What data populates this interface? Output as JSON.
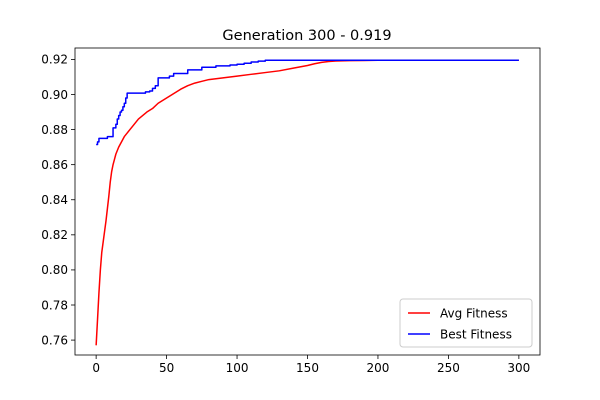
{
  "chart_data": {
    "type": "line",
    "title": "Generation 300 - 0.919",
    "xlabel": "",
    "ylabel": "",
    "xlim": [
      -15,
      315
    ],
    "ylim": [
      0.7515,
      0.9265
    ],
    "xticks": [
      0,
      50,
      100,
      150,
      200,
      250,
      300
    ],
    "yticks": [
      0.76,
      0.78,
      0.8,
      0.82,
      0.84,
      0.86,
      0.88,
      0.9,
      0.92
    ],
    "ytick_labels": [
      "0.76",
      "0.78",
      "0.80",
      "0.82",
      "0.84",
      "0.86",
      "0.88",
      "0.90",
      "0.92"
    ],
    "grid": false,
    "legend_position": "lower-right",
    "series": [
      {
        "name": "Avg Fitness",
        "color": "#ff0000",
        "step": false,
        "x": [
          0,
          1,
          2,
          3,
          4,
          5,
          6,
          7,
          8,
          9,
          10,
          11,
          12,
          13,
          14,
          15,
          16,
          18,
          20,
          22,
          25,
          28,
          30,
          33,
          36,
          40,
          44,
          48,
          52,
          56,
          60,
          65,
          70,
          75,
          80,
          85,
          90,
          100,
          110,
          120,
          130,
          140,
          150,
          155,
          160,
          165,
          170,
          180,
          190,
          200,
          250,
          300
        ],
        "values": [
          0.757,
          0.772,
          0.787,
          0.8,
          0.81,
          0.816,
          0.822,
          0.828,
          0.835,
          0.842,
          0.85,
          0.856,
          0.86,
          0.863,
          0.866,
          0.868,
          0.87,
          0.873,
          0.876,
          0.878,
          0.881,
          0.884,
          0.886,
          0.888,
          0.89,
          0.892,
          0.895,
          0.897,
          0.899,
          0.901,
          0.903,
          0.905,
          0.9065,
          0.9075,
          0.9085,
          0.909,
          0.9095,
          0.9105,
          0.9115,
          0.9125,
          0.9135,
          0.915,
          0.9165,
          0.9175,
          0.9183,
          0.9188,
          0.9191,
          0.9193,
          0.9194,
          0.9195,
          0.9195,
          0.9195
        ]
      },
      {
        "name": "Best Fitness",
        "color": "#0000ff",
        "step": true,
        "x": [
          0,
          1,
          2,
          6,
          8,
          12,
          14,
          15,
          16,
          17,
          18,
          19,
          20,
          21,
          22,
          35,
          38,
          40,
          42,
          44,
          52,
          55,
          65,
          75,
          85,
          95,
          100,
          105,
          110,
          115,
          120,
          130,
          300
        ],
        "values": [
          0.8715,
          0.873,
          0.875,
          0.875,
          0.876,
          0.881,
          0.883,
          0.886,
          0.888,
          0.89,
          0.891,
          0.893,
          0.895,
          0.898,
          0.9008,
          0.9015,
          0.902,
          0.9035,
          0.905,
          0.9095,
          0.9105,
          0.912,
          0.914,
          0.9155,
          0.9163,
          0.9168,
          0.9172,
          0.9178,
          0.9185,
          0.919,
          0.9195,
          0.9195,
          0.9195
        ]
      }
    ]
  }
}
